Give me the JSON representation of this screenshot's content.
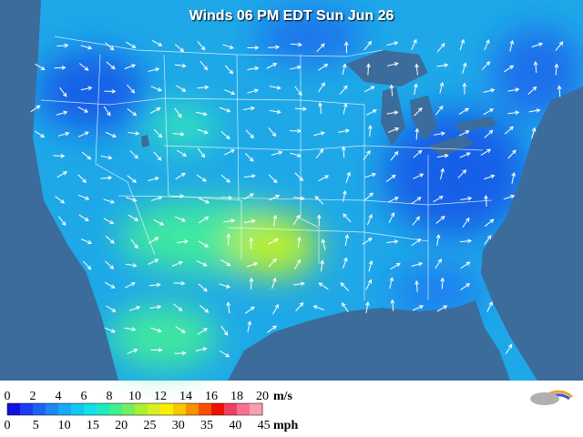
{
  "header": {
    "title": "Winds 06 PM EDT Sun Jun 26"
  },
  "legend": {
    "colors": [
      "#1010e0",
      "#1a3ef0",
      "#1e62f4",
      "#1e86f6",
      "#18a8f4",
      "#10c8f0",
      "#10e0e8",
      "#20e8c0",
      "#40f090",
      "#70f060",
      "#a8f030",
      "#d8f020",
      "#f8f000",
      "#f8c800",
      "#f89000",
      "#f85000",
      "#f01000",
      "#f04060",
      "#f87090",
      "#f8a0b0"
    ],
    "ms": {
      "labels": [
        0,
        2,
        4,
        6,
        8,
        10,
        12,
        14,
        16,
        18,
        20
      ],
      "unit": "m/s"
    },
    "mph": {
      "labels": [
        0,
        5,
        10,
        15,
        20,
        25,
        30,
        35,
        40,
        45
      ],
      "unit": "mph"
    }
  }
}
